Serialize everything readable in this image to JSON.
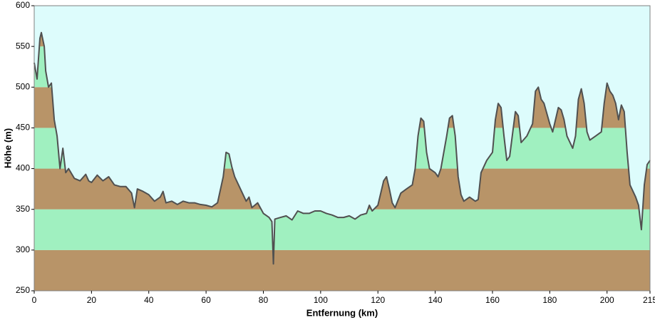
{
  "chart_data": {
    "type": "area",
    "x_label": "Entfernung  (km)",
    "y_label": "Höhe (m)",
    "x": [
      0,
      1,
      2,
      2.5,
      3.5,
      4,
      5,
      6,
      7,
      8,
      9,
      10,
      11,
      12,
      14,
      16,
      18,
      19,
      20,
      22,
      24,
      26,
      28,
      30,
      32,
      34,
      35,
      36,
      38,
      40,
      42,
      44,
      45,
      46,
      48,
      50,
      52,
      54,
      56,
      58,
      60,
      62,
      64,
      66,
      67,
      68,
      69,
      70,
      72,
      74,
      75,
      76,
      78,
      80,
      82,
      83,
      83.5,
      84,
      86,
      88,
      90,
      92,
      94,
      96,
      98,
      100,
      102,
      104,
      106,
      108,
      110,
      112,
      114,
      116,
      117,
      118,
      120,
      122,
      123,
      124,
      125,
      126,
      128,
      130,
      132,
      133,
      134,
      135,
      136,
      137,
      138,
      140,
      141,
      142,
      144,
      145,
      146,
      147,
      148,
      149,
      150,
      152,
      154,
      155,
      156,
      158,
      160,
      161,
      162,
      163,
      164,
      165,
      166,
      168,
      169,
      170,
      172,
      174,
      175,
      176,
      177,
      178,
      180,
      181,
      182,
      183,
      184,
      185,
      186,
      188,
      189,
      190,
      191,
      192,
      193,
      194,
      196,
      198,
      199,
      200,
      201,
      202,
      203,
      204,
      205,
      206,
      207,
      208,
      210,
      211,
      212,
      213,
      214,
      215
    ],
    "values": [
      530,
      510,
      560,
      567,
      550,
      520,
      500,
      505,
      460,
      440,
      400,
      425,
      395,
      400,
      388,
      385,
      393,
      385,
      383,
      392,
      385,
      390,
      380,
      378,
      378,
      370,
      352,
      375,
      372,
      368,
      360,
      365,
      372,
      358,
      360,
      356,
      360,
      358,
      358,
      356,
      355,
      353,
      358,
      390,
      420,
      418,
      402,
      390,
      375,
      360,
      365,
      352,
      358,
      345,
      340,
      335,
      283,
      338,
      340,
      342,
      337,
      348,
      345,
      345,
      348,
      348,
      345,
      343,
      340,
      340,
      342,
      338,
      343,
      345,
      355,
      348,
      355,
      385,
      390,
      375,
      358,
      352,
      370,
      375,
      380,
      400,
      440,
      462,
      458,
      420,
      400,
      395,
      390,
      400,
      440,
      462,
      465,
      440,
      390,
      368,
      360,
      365,
      360,
      362,
      395,
      410,
      420,
      460,
      480,
      475,
      440,
      410,
      415,
      470,
      465,
      432,
      440,
      455,
      495,
      500,
      485,
      480,
      455,
      445,
      460,
      475,
      472,
      460,
      440,
      425,
      440,
      485,
      498,
      480,
      445,
      435,
      440,
      445,
      480,
      505,
      495,
      490,
      480,
      460,
      478,
      470,
      420,
      380,
      365,
      355,
      325,
      380,
      405,
      410
    ],
    "line_color": "#505050",
    "band_colors": [
      "#b89468",
      "#a0f0c0"
    ],
    "background_color": "#ddfcfc",
    "xlim": [
      0,
      215
    ],
    "xticks": [
      0,
      20,
      40,
      60,
      80,
      100,
      120,
      140,
      160,
      180,
      200,
      215
    ],
    "ylim": [
      250,
      600
    ],
    "yticks": [
      250,
      300,
      350,
      400,
      450,
      500,
      550,
      600
    ]
  }
}
